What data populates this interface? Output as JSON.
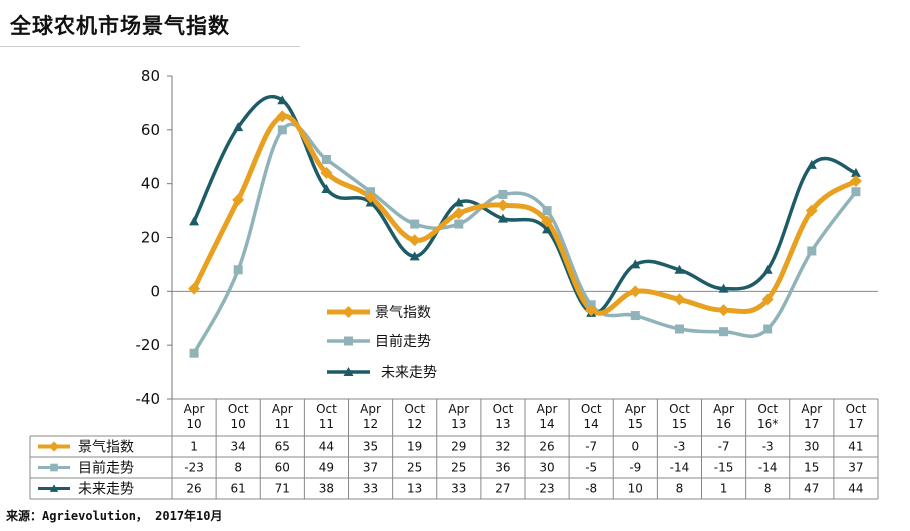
{
  "title": "全球农机市场景气指数",
  "source": "来源：Agrievolution， 2017年10月",
  "chart_data": {
    "type": "line",
    "categories": [
      [
        "Apr",
        "10"
      ],
      [
        "Oct",
        "10"
      ],
      [
        "Apr",
        "11"
      ],
      [
        "Oct",
        "11"
      ],
      [
        "Apr",
        "12"
      ],
      [
        "Oct",
        "12"
      ],
      [
        "Apr",
        "13"
      ],
      [
        "Oct",
        "13"
      ],
      [
        "Apr",
        "14"
      ],
      [
        "Oct",
        "14"
      ],
      [
        "Apr",
        "15"
      ],
      [
        "Oct",
        "15"
      ],
      [
        "Apr",
        "16"
      ],
      [
        "Oct",
        "16*"
      ],
      [
        "Apr",
        "17"
      ],
      [
        "Oct",
        "17"
      ]
    ],
    "ylim": [
      -40,
      80
    ],
    "yticks": [
      80,
      60,
      40,
      20,
      0,
      -20,
      -40
    ],
    "legend_position": "center",
    "table_below": true,
    "series": [
      {
        "name": "景气指数",
        "color": "#E8A020",
        "marker": "diamond",
        "values": [
          1,
          34,
          65,
          44,
          35,
          19,
          29,
          32,
          26,
          -7,
          0,
          -3,
          -7,
          -3,
          30,
          41
        ]
      },
      {
        "name": "目前走势",
        "color": "#8FB3B8",
        "marker": "square",
        "values": [
          -23,
          8,
          60,
          49,
          37,
          25,
          25,
          36,
          30,
          -5,
          -9,
          -14,
          -15,
          -14,
          15,
          37
        ]
      },
      {
        "name": "未来走势",
        "color": "#1D5C66",
        "marker": "triangle",
        "values": [
          26,
          61,
          71,
          38,
          33,
          13,
          33,
          27,
          23,
          -8,
          10,
          8,
          1,
          8,
          47,
          44
        ]
      }
    ]
  }
}
